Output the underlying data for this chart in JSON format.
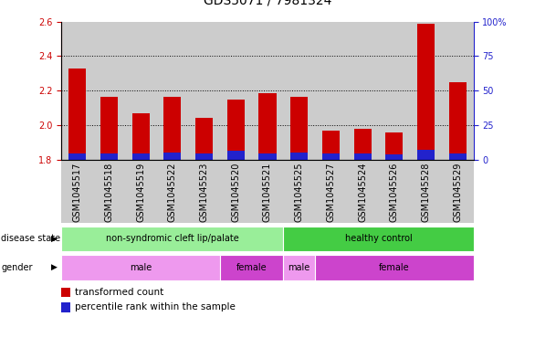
{
  "title": "GDS5071 / 7981324",
  "samples": [
    "GSM1045517",
    "GSM1045518",
    "GSM1045519",
    "GSM1045522",
    "GSM1045523",
    "GSM1045520",
    "GSM1045521",
    "GSM1045525",
    "GSM1045527",
    "GSM1045524",
    "GSM1045526",
    "GSM1045528",
    "GSM1045529"
  ],
  "red_values": [
    2.33,
    2.165,
    2.07,
    2.165,
    2.04,
    2.15,
    2.185,
    2.165,
    1.97,
    1.98,
    1.96,
    2.585,
    2.25
  ],
  "blue_values": [
    0.038,
    0.038,
    0.038,
    0.042,
    0.036,
    0.05,
    0.038,
    0.042,
    0.036,
    0.036,
    0.03,
    0.055,
    0.036
  ],
  "baseline": 1.8,
  "ylim_left": [
    1.8,
    2.6
  ],
  "ylim_right": [
    0,
    100
  ],
  "yticks_left": [
    1.8,
    2.0,
    2.2,
    2.4,
    2.6
  ],
  "yticks_right": [
    0,
    25,
    50,
    75,
    100
  ],
  "ytick_right_labels": [
    "0",
    "25",
    "50",
    "75",
    "100%"
  ],
  "bar_color_red": "#cc0000",
  "bar_color_blue": "#2222cc",
  "bar_width": 0.55,
  "disease_state_groups": [
    {
      "label": "non-syndromic cleft lip/palate",
      "start": 0,
      "end": 7,
      "color": "#99ee99"
    },
    {
      "label": "healthy control",
      "start": 7,
      "end": 13,
      "color": "#44cc44"
    }
  ],
  "gender_groups": [
    {
      "label": "male",
      "start": 0,
      "end": 5,
      "color": "#ee99ee"
    },
    {
      "label": "female",
      "start": 5,
      "end": 7,
      "color": "#cc44cc"
    },
    {
      "label": "male",
      "start": 7,
      "end": 8,
      "color": "#ee99ee"
    },
    {
      "label": "female",
      "start": 8,
      "end": 13,
      "color": "#cc44cc"
    }
  ],
  "tick_color_left": "#cc0000",
  "tick_color_right": "#2222cc",
  "grid_yticks": [
    2.0,
    2.2,
    2.4
  ],
  "col_bg_color": "#cccccc",
  "label_fontsize": 7.5,
  "tick_fontsize": 7.0,
  "title_fontsize": 10
}
